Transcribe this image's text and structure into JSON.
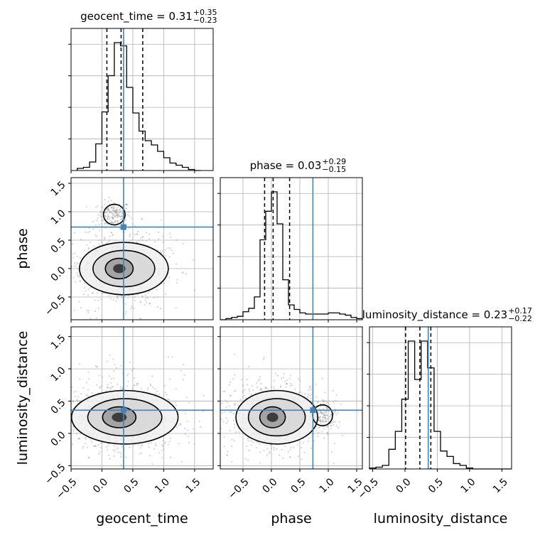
{
  "chart_data": {
    "type": "corner",
    "parameters": [
      "geocent_time",
      "phase",
      "luminosity_distance"
    ],
    "truths": [
      0.35,
      0.73,
      0.36
    ],
    "truth_color": "#4682b4",
    "axis_ranges": {
      "geocent_time": [
        -0.5,
        1.8
      ],
      "phase": [
        -0.9,
        1.6
      ],
      "luminosity_distance": [
        -0.55,
        1.65
      ]
    },
    "ticks": {
      "geocent_time": [
        "-0.5",
        "0.0",
        "0.5",
        "1.0",
        "1.5"
      ],
      "phase": [
        "-0.5",
        "0.0",
        "0.5",
        "1.0",
        "1.5"
      ],
      "luminosity_distance": [
        "-0.5",
        "0.0",
        "0.5",
        "1.0",
        "1.5"
      ]
    },
    "grid": true,
    "titles": [
      {
        "name": "geocent_time",
        "median": "0.31",
        "plus": "+0.35",
        "minus": "−0.23"
      },
      {
        "name": "phase",
        "median": "0.03",
        "plus": "+0.29",
        "minus": "−0.15"
      },
      {
        "name": "luminosity_distance",
        "median": "0.23",
        "plus": "+0.17",
        "minus": "−0.22"
      }
    ],
    "quantiles": {
      "geocent_time": [
        0.08,
        0.31,
        0.66
      ],
      "phase": [
        -0.12,
        0.03,
        0.32
      ],
      "luminosity_distance": [
        0.01,
        0.23,
        0.4
      ]
    },
    "histograms": {
      "geocent_time": {
        "edges": [
          -0.4,
          -0.3,
          -0.2,
          -0.1,
          0.0,
          0.1,
          0.2,
          0.3,
          0.4,
          0.5,
          0.6,
          0.7,
          0.8,
          0.9,
          1.0,
          1.1,
          1.2,
          1.3,
          1.4,
          1.5,
          1.6
        ],
        "counts": [
          2,
          3,
          8,
          25,
          55,
          89,
          120,
          117,
          78,
          54,
          37,
          28,
          24,
          18,
          12,
          7,
          5,
          3,
          1,
          0
        ]
      },
      "phase": {
        "edges": [
          -0.9,
          -0.8,
          -0.7,
          -0.6,
          -0.5,
          -0.4,
          -0.3,
          -0.2,
          -0.1,
          0.0,
          0.1,
          0.2,
          0.3,
          0.4,
          0.5,
          0.6,
          0.7,
          0.8,
          0.9,
          1.0,
          1.1,
          1.2,
          1.3,
          1.4,
          1.5,
          1.6
        ],
        "counts": [
          0,
          1,
          2,
          3,
          7,
          10,
          20,
          70,
          95,
          112,
          84,
          35,
          13,
          9,
          6,
          5,
          5,
          5,
          5,
          6,
          6,
          5,
          4,
          2,
          1
        ]
      },
      "luminosity_distance": {
        "edges": [
          -0.55,
          -0.45,
          -0.35,
          -0.25,
          -0.15,
          -0.05,
          0.05,
          0.15,
          0.25,
          0.35,
          0.45,
          0.55,
          0.65,
          0.75,
          0.85,
          0.95,
          1.05,
          1.15,
          1.25,
          1.35,
          1.45,
          1.55,
          1.65
        ],
        "counts": [
          1,
          2,
          4,
          22,
          42,
          78,
          143,
          100,
          143,
          113,
          42,
          20,
          14,
          6,
          4,
          1,
          0,
          0,
          0,
          0,
          0,
          0
        ]
      }
    },
    "pairs": [
      {
        "x": "geocent_time",
        "y": "phase",
        "center": [
          0.28,
          0.0
        ],
        "spread": [
          0.25,
          0.2
        ],
        "extra_island": [
          0.2,
          0.95
        ]
      },
      {
        "x": "geocent_time",
        "y": "luminosity_distance",
        "center": [
          0.28,
          0.25
        ],
        "spread": [
          0.3,
          0.18
        ]
      },
      {
        "x": "phase",
        "y": "luminosity_distance",
        "center": [
          0.02,
          0.25
        ],
        "spread": [
          0.25,
          0.18
        ],
        "extra_island": [
          0.9,
          0.28
        ]
      }
    ],
    "xlabels": [
      "geocent_time",
      "phase",
      "luminosity_distance"
    ],
    "ylabels": [
      "",
      "phase",
      "luminosity_distance"
    ]
  }
}
